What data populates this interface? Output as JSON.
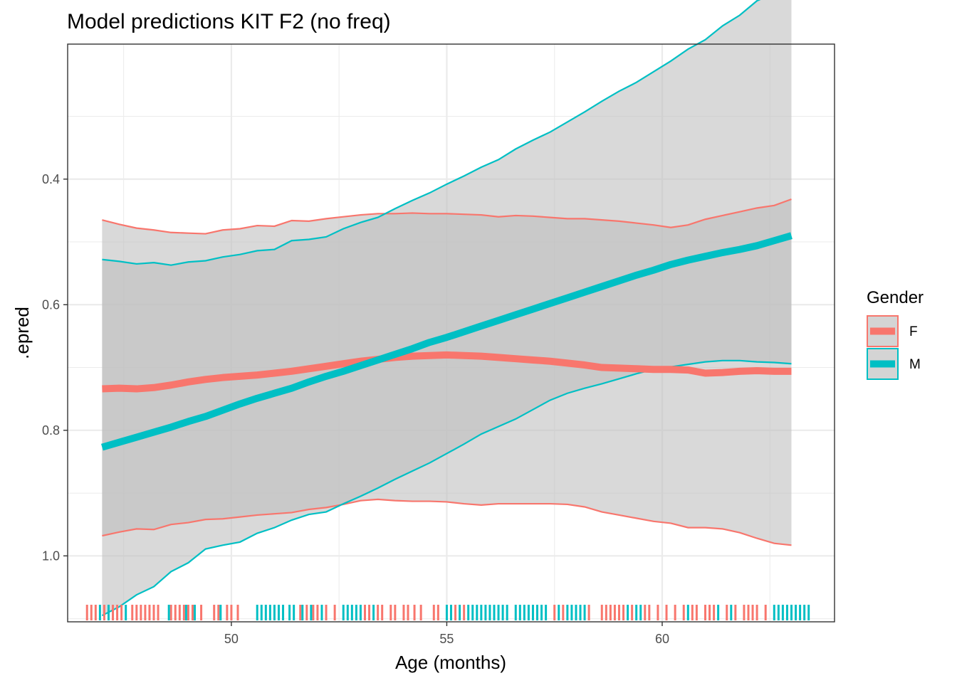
{
  "chart_data": {
    "type": "line",
    "title": "Model predictions KIT F2 (no freq)",
    "xlabel": "Age (months)",
    "ylabel": ".epred",
    "y_reversed": true,
    "xlim": [
      46.2,
      64.0
    ],
    "ylim": [
      1.105,
      0.185
    ],
    "x_ticks": [
      50,
      55,
      60
    ],
    "x_tick_labels": [
      "50",
      "55",
      "60"
    ],
    "y_ticks": [
      0.4,
      0.6,
      0.8,
      1.0
    ],
    "y_tick_labels": [
      "0.4",
      "0.6",
      "0.8",
      "1.0"
    ],
    "grid": true,
    "legend": {
      "title": "Gender",
      "position": "right",
      "entries": [
        "F",
        "M"
      ]
    },
    "colors": {
      "F": "#F8766D",
      "M": "#00BFC4",
      "ribbon": "#bdbdbd",
      "grid": "#ebebeb"
    },
    "x": [
      47.0,
      47.4,
      47.8,
      48.2,
      48.6,
      49.0,
      49.4,
      49.8,
      50.2,
      50.6,
      51.0,
      51.4,
      51.8,
      52.2,
      52.6,
      53.0,
      53.4,
      53.8,
      54.2,
      54.6,
      55.0,
      55.4,
      55.8,
      56.2,
      56.6,
      57.0,
      57.4,
      57.8,
      58.2,
      58.6,
      59.0,
      59.4,
      59.8,
      60.2,
      60.6,
      61.0,
      61.4,
      61.8,
      62.2,
      62.6,
      63.0
    ],
    "series": [
      {
        "name": "F",
        "values": [
          0.734,
          0.733,
          0.734,
          0.732,
          0.728,
          0.723,
          0.719,
          0.716,
          0.714,
          0.712,
          0.709,
          0.706,
          0.702,
          0.698,
          0.694,
          0.69,
          0.687,
          0.684,
          0.682,
          0.681,
          0.68,
          0.681,
          0.682,
          0.684,
          0.686,
          0.688,
          0.69,
          0.693,
          0.696,
          0.7,
          0.701,
          0.702,
          0.703,
          0.703,
          0.704,
          0.709,
          0.708,
          0.706,
          0.705,
          0.706,
          0.706
        ],
        "lower": [
          0.465,
          0.472,
          0.478,
          0.481,
          0.485,
          0.486,
          0.487,
          0.481,
          0.479,
          0.474,
          0.475,
          0.466,
          0.467,
          0.463,
          0.46,
          0.457,
          0.455,
          0.455,
          0.454,
          0.455,
          0.455,
          0.456,
          0.457,
          0.46,
          0.458,
          0.459,
          0.461,
          0.463,
          0.463,
          0.465,
          0.467,
          0.47,
          0.473,
          0.477,
          0.473,
          0.464,
          0.458,
          0.452,
          0.446,
          0.442,
          0.432
        ],
        "upper": [
          0.968,
          0.962,
          0.957,
          0.958,
          0.95,
          0.947,
          0.942,
          0.941,
          0.938,
          0.935,
          0.933,
          0.931,
          0.926,
          0.923,
          0.918,
          0.912,
          0.91,
          0.912,
          0.913,
          0.913,
          0.914,
          0.917,
          0.919,
          0.917,
          0.917,
          0.917,
          0.917,
          0.918,
          0.922,
          0.93,
          0.935,
          0.94,
          0.945,
          0.948,
          0.955,
          0.955,
          0.957,
          0.963,
          0.972,
          0.98,
          0.983
        ]
      },
      {
        "name": "M",
        "values": [
          0.827,
          0.819,
          0.811,
          0.803,
          0.795,
          0.786,
          0.778,
          0.768,
          0.758,
          0.749,
          0.741,
          0.733,
          0.723,
          0.714,
          0.706,
          0.697,
          0.688,
          0.679,
          0.67,
          0.66,
          0.652,
          0.643,
          0.634,
          0.625,
          0.616,
          0.607,
          0.598,
          0.589,
          0.58,
          0.571,
          0.562,
          0.553,
          0.545,
          0.536,
          0.529,
          0.523,
          0.517,
          0.512,
          0.506,
          0.498,
          0.49
        ],
        "lower": [
          0.528,
          0.531,
          0.535,
          0.533,
          0.537,
          0.532,
          0.53,
          0.524,
          0.52,
          0.514,
          0.512,
          0.498,
          0.496,
          0.492,
          0.479,
          0.469,
          0.461,
          0.447,
          0.434,
          0.422,
          0.408,
          0.395,
          0.381,
          0.369,
          0.352,
          0.338,
          0.325,
          0.309,
          0.293,
          0.276,
          0.26,
          0.246,
          0.229,
          0.212,
          0.193,
          0.178,
          0.156,
          0.139,
          0.116,
          0.104,
          0.08
        ],
        "upper": [
          1.095,
          1.081,
          1.062,
          1.049,
          1.025,
          1.011,
          0.989,
          0.983,
          0.978,
          0.964,
          0.955,
          0.943,
          0.934,
          0.93,
          0.917,
          0.905,
          0.892,
          0.878,
          0.865,
          0.852,
          0.837,
          0.822,
          0.806,
          0.794,
          0.782,
          0.767,
          0.752,
          0.741,
          0.733,
          0.726,
          0.718,
          0.71,
          0.703,
          0.699,
          0.695,
          0.691,
          0.689,
          0.689,
          0.691,
          0.692,
          0.694
        ]
      }
    ],
    "rug": {
      "F": [
        46.65,
        46.75,
        46.85,
        47.05,
        47.25,
        47.35,
        47.45,
        47.7,
        47.8,
        47.9,
        48.0,
        48.1,
        48.2,
        48.3,
        48.6,
        48.7,
        48.8,
        48.9,
        49.0,
        49.1,
        49.3,
        49.6,
        49.7,
        49.9,
        50.0,
        50.15,
        51.6,
        51.75,
        51.9,
        52.0,
        52.2,
        52.4,
        53.1,
        53.2,
        53.4,
        53.5,
        53.7,
        53.8,
        54.0,
        54.1,
        54.25,
        54.4,
        54.7,
        54.8,
        55.2,
        55.4,
        57.5,
        57.7,
        58.3,
        58.6,
        58.7,
        58.8,
        58.9,
        59.0,
        59.1,
        59.3,
        59.6,
        59.7,
        59.9,
        60.1,
        60.3,
        60.5,
        60.7,
        60.8,
        61.0,
        61.1,
        61.2,
        61.5,
        61.7,
        61.9,
        62.0,
        62.1,
        62.2,
        62.4
      ],
      "M": [
        46.95,
        47.15,
        47.55,
        48.55,
        48.95,
        49.15,
        49.75,
        50.6,
        50.7,
        50.8,
        50.9,
        51.0,
        51.1,
        51.2,
        51.35,
        51.45,
        51.65,
        51.85,
        52.1,
        52.6,
        52.7,
        52.8,
        52.9,
        53.0,
        53.3,
        55.0,
        55.1,
        55.3,
        55.5,
        55.6,
        55.7,
        55.8,
        55.9,
        56.0,
        56.1,
        56.2,
        56.3,
        56.4,
        56.6,
        56.7,
        56.8,
        56.9,
        57.0,
        57.1,
        57.2,
        57.3,
        57.6,
        57.8,
        57.9,
        58.0,
        58.1,
        58.2,
        59.2,
        59.4,
        59.5,
        60.6,
        61.3,
        61.6,
        62.6,
        62.7,
        62.8,
        62.9,
        63.0,
        63.1,
        63.2,
        63.3,
        63.4
      ]
    }
  }
}
